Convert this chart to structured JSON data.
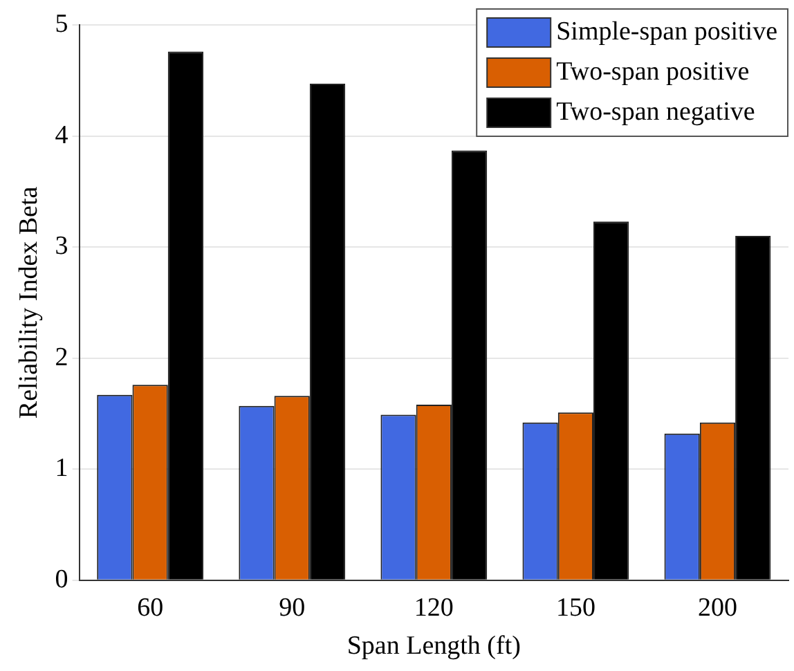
{
  "chart_data": {
    "type": "bar",
    "xlabel": "Span Length (ft)",
    "ylabel": "Reliability Index Beta",
    "categories": [
      "60",
      "90",
      "120",
      "150",
      "200"
    ],
    "series": [
      {
        "name": "Simple-span positive",
        "color": "#4169e1",
        "values": [
          1.67,
          1.57,
          1.49,
          1.42,
          1.32
        ]
      },
      {
        "name": "Two-span positive",
        "color": "#d95f02",
        "values": [
          1.76,
          1.66,
          1.58,
          1.51,
          1.42
        ]
      },
      {
        "name": "Two-span negative",
        "color": "#000000",
        "values": [
          4.76,
          4.47,
          3.87,
          3.23,
          3.1
        ]
      }
    ],
    "ylim": [
      0,
      5
    ],
    "yticks": [
      0,
      1,
      2,
      3,
      4,
      5
    ],
    "grid": "y",
    "legend": "top right"
  }
}
